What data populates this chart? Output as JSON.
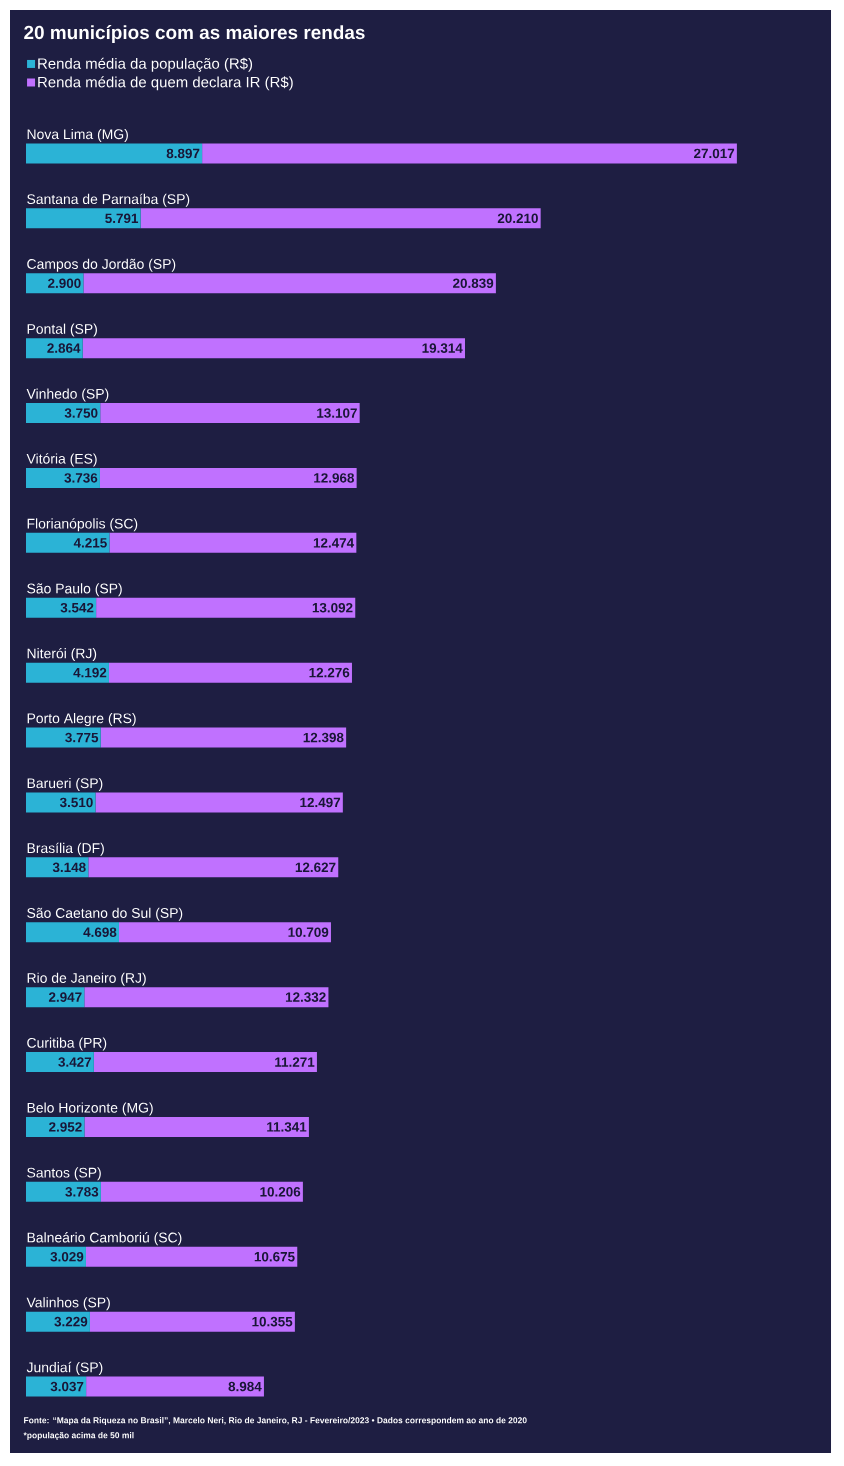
{
  "chart_data": {
    "type": "bar",
    "orientation": "horizontal",
    "stacked": true,
    "title": "20 municípios com as maiores rendas",
    "categories": [
      "Nova Lima (MG)",
      "Santana de Parnaíba (SP)",
      "Campos do Jordão (SP)",
      "Pontal (SP)",
      "Vinhedo (SP)",
      "Vitória (ES)",
      "Florianópolis (SC)",
      "São Paulo (SP)",
      "Niterói (RJ)",
      "Porto Alegre (RS)",
      "Barueri (SP)",
      "Brasília (DF)",
      "São Caetano do Sul (SP)",
      "Rio de Janeiro (RJ)",
      "Curitiba (PR)",
      "Belo Horizonte (MG)",
      "Santos (SP)",
      "Balneário Camboriú (SC)",
      "Valinhos (SP)",
      "Jundiaí (SP)"
    ],
    "series": [
      {
        "name": "Renda média da população (R$)",
        "color": "#2bb3d6",
        "values": [
          8897,
          5791,
          2900,
          2864,
          3750,
          3736,
          4215,
          3542,
          4192,
          3775,
          3510,
          3148,
          4698,
          2947,
          3427,
          2952,
          3783,
          3029,
          3229,
          3037
        ],
        "value_labels": [
          "8.897",
          "5.791",
          "2.900",
          "2.864",
          "3.750",
          "3.736",
          "4.215",
          "3.542",
          "4.192",
          "3.775",
          "3.510",
          "3.148",
          "4.698",
          "2.947",
          "3.427",
          "2.952",
          "3.783",
          "3.029",
          "3.229",
          "3.037"
        ]
      },
      {
        "name": "Renda média de quem declara IR (R$)",
        "color": "#c071ff",
        "values": [
          27017,
          20210,
          20839,
          19314,
          13107,
          12968,
          12474,
          13092,
          12276,
          12398,
          12497,
          12627,
          10709,
          12332,
          11271,
          11341,
          10206,
          10675,
          10355,
          8984
        ],
        "value_labels": [
          "27.017",
          "20.210",
          "20.839",
          "19.314",
          "13.107",
          "12.968",
          "12.474",
          "13.092",
          "12.276",
          "12.398",
          "12.497",
          "12.627",
          "10.709",
          "12.332",
          "11.271",
          "11.341",
          "10.206",
          "10.675",
          "10.355",
          "8.984"
        ]
      }
    ],
    "tick_labels": "y",
    "legend": "top left",
    "annotations": [
      "Fonte: “Mapa da Riqueza no Brasil”, Marcelo Neri, Rio de Janeiro, RJ - Fevereiro/2023 • Dados correspondem ao ano de 2020",
      "*população acima de 50 mil"
    ]
  }
}
